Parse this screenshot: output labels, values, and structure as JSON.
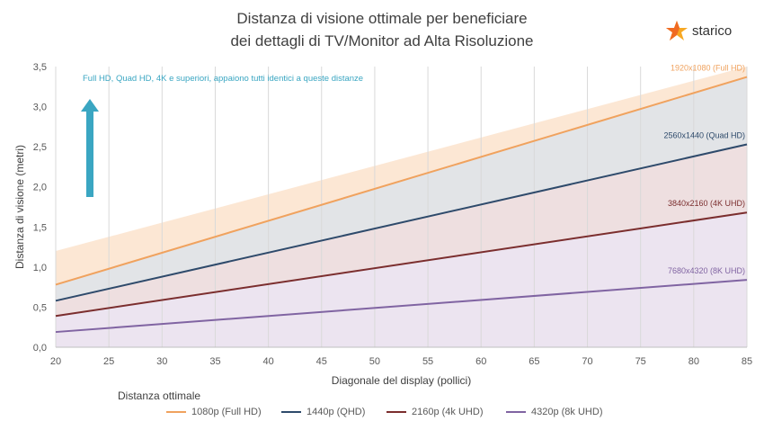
{
  "title": {
    "line1": "Distanza di visione ottimale per beneficiare",
    "line2": "dei dettagli di TV/Monitor ad Alta Risoluzione"
  },
  "logo": {
    "text": "starico",
    "icon": "starico-star-icon",
    "colors": [
      "#f06a22",
      "#f7a823"
    ]
  },
  "chart_data": {
    "type": "line",
    "xlabel": "Diagonale del display (pollici)",
    "ylabel": "Distanza di visione (metri)",
    "xlim": [
      20,
      85
    ],
    "ylim": [
      0,
      3.5
    ],
    "x_ticks": [
      20,
      25,
      30,
      35,
      40,
      45,
      50,
      55,
      60,
      65,
      70,
      75,
      80,
      85
    ],
    "y_ticks": [
      0,
      0.5,
      1.0,
      1.5,
      2.0,
      2.5,
      3.0,
      3.5
    ],
    "y_tick_labels": [
      "0,0",
      "0,5",
      "1,0",
      "1,5",
      "2,0",
      "2,5",
      "3,0",
      "3,5"
    ],
    "grid": "vertical",
    "legend_title": "Distanza ottimale",
    "legend_position": "bottom",
    "series": [
      {
        "name": "1080p (Full HD)",
        "end_label": "1920x1080 (Full HD)",
        "color": "#f0a25e",
        "x": [
          20,
          85
        ],
        "y": [
          0.78,
          3.37
        ]
      },
      {
        "name": "1440p (QHD)",
        "end_label": "2560x1440 (Quad HD)",
        "color": "#2e4a6b",
        "x": [
          20,
          85
        ],
        "y": [
          0.58,
          2.53
        ]
      },
      {
        "name": "2160p (4k UHD)",
        "end_label": "3840x2160 (4K UHD)",
        "color": "#7b2e2e",
        "x": [
          20,
          85
        ],
        "y": [
          0.39,
          1.68
        ]
      },
      {
        "name": "4320p (8k UHD)",
        "end_label": "7680x4320 (8K UHD)",
        "color": "#8064a2",
        "x": [
          20,
          85
        ],
        "y": [
          0.19,
          0.84
        ]
      }
    ],
    "bands": [
      {
        "fill": "#fbe3cc",
        "upper": [
          1.2,
          3.5
        ]
      },
      {
        "fill": "#dde3ea",
        "upper": [
          0.78,
          3.37
        ]
      },
      {
        "fill": "#f0dede",
        "upper": [
          0.58,
          2.53
        ]
      },
      {
        "fill": "#ebe5f2",
        "upper": [
          0.39,
          1.68
        ]
      }
    ],
    "annotation": {
      "text": "Full HD, Quad HD, 4K e superiori, appaiono tutti identici a queste distanze",
      "color": "#3aa6c2",
      "arrow": "up"
    }
  }
}
